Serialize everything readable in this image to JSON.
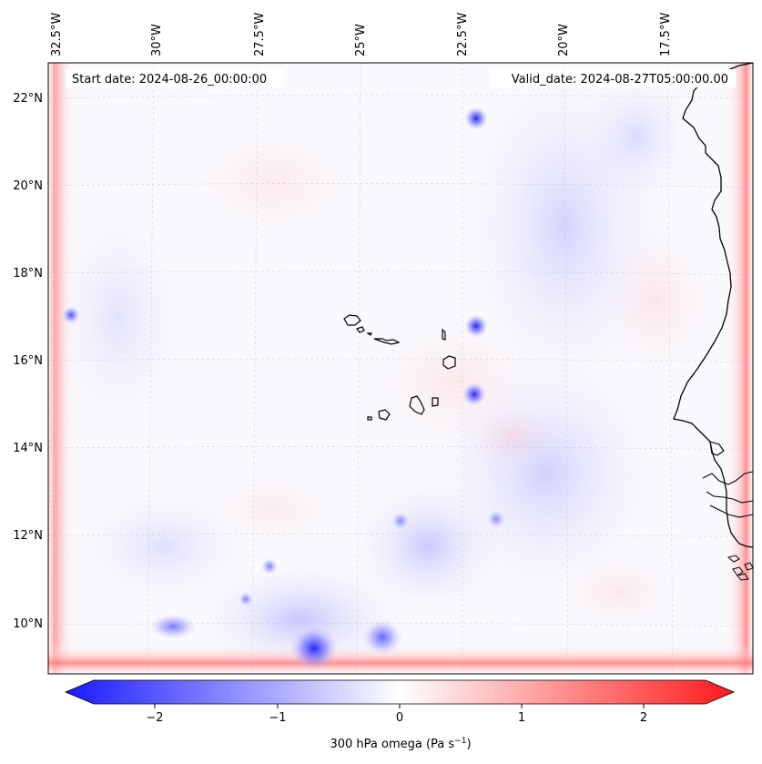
{
  "map": {
    "start_date": "Start date: 2024-08-26_00:00:00",
    "valid_date": "Valid_date: 2024-08-27T05:00:00.00",
    "lon_labels": [
      "32.5°W",
      "30°W",
      "27.5°W",
      "25°W",
      "22.5°W",
      "20°W",
      "17.5°W"
    ],
    "lat_labels": [
      "22°N",
      "20°N",
      "18°N",
      "16°N",
      "14°N",
      "12°N",
      "10°N"
    ],
    "field": "300 hPa omega",
    "features": [
      "cape-verde-islands",
      "west-african-coastline"
    ]
  },
  "colorbar": {
    "ticks": [
      "−2",
      "−1",
      "0",
      "1",
      "2"
    ],
    "label_main": "300 hPa omega (Pa s",
    "label_sup": "−1",
    "label_close": ")",
    "range": [
      -2.75,
      2.75
    ],
    "colormap": "bwr",
    "colors": {
      "negative": "#0000ff",
      "neutral": "#ffffff",
      "positive": "#ff0000"
    }
  }
}
